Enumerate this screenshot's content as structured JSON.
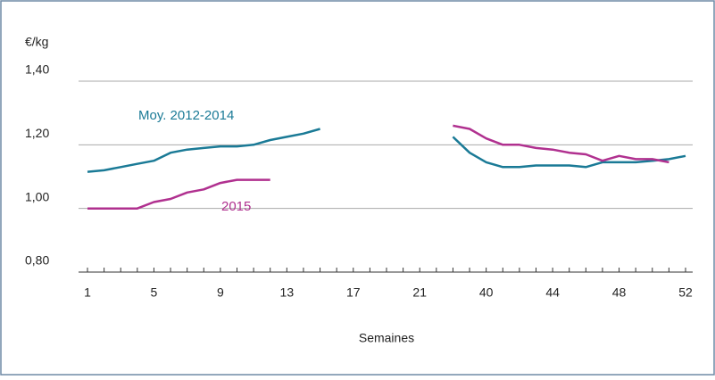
{
  "chart_data": {
    "type": "line",
    "y_label": "€/kg",
    "x_label": "Semaines",
    "categories": [
      1,
      null,
      null,
      null,
      5,
      null,
      null,
      null,
      9,
      null,
      null,
      null,
      13,
      null,
      null,
      null,
      17,
      null,
      null,
      null,
      21,
      null,
      null,
      null,
      40,
      null,
      null,
      null,
      44,
      null,
      null,
      null,
      48,
      null,
      null,
      null,
      52
    ],
    "series": [
      {
        "name": "Moy. 2012-2014",
        "color": "#1a7a96",
        "values": [
          1.115,
          1.12,
          1.13,
          1.14,
          1.15,
          1.175,
          1.185,
          1.19,
          1.195,
          1.195,
          1.2,
          1.215,
          1.225,
          1.235,
          1.25,
          null,
          null,
          null,
          null,
          null,
          null,
          null,
          1.225,
          1.175,
          1.145,
          1.13,
          1.13,
          1.135,
          1.135,
          1.135,
          1.13,
          1.145,
          1.145,
          1.145,
          1.15,
          1.155,
          1.165
        ]
      },
      {
        "name": "2015",
        "color": "#b0308f",
        "values": [
          1.0,
          1.0,
          1.0,
          1.0,
          1.02,
          1.03,
          1.05,
          1.06,
          1.08,
          1.09,
          1.09,
          1.09,
          null,
          null,
          null,
          null,
          null,
          null,
          null,
          null,
          null,
          null,
          1.26,
          1.25,
          1.22,
          1.2,
          1.2,
          1.19,
          1.185,
          1.175,
          1.17,
          1.15,
          1.165,
          1.155,
          1.155,
          1.145,
          null
        ]
      }
    ],
    "ylim": [
      0.8,
      1.4
    ],
    "yticks": [
      {
        "value": 0.8,
        "label": "0,80"
      },
      {
        "value": 1.0,
        "label": "1,00"
      },
      {
        "value": 1.2,
        "label": "1,20"
      },
      {
        "value": 1.4,
        "label": "1,40"
      }
    ],
    "grid": true
  }
}
